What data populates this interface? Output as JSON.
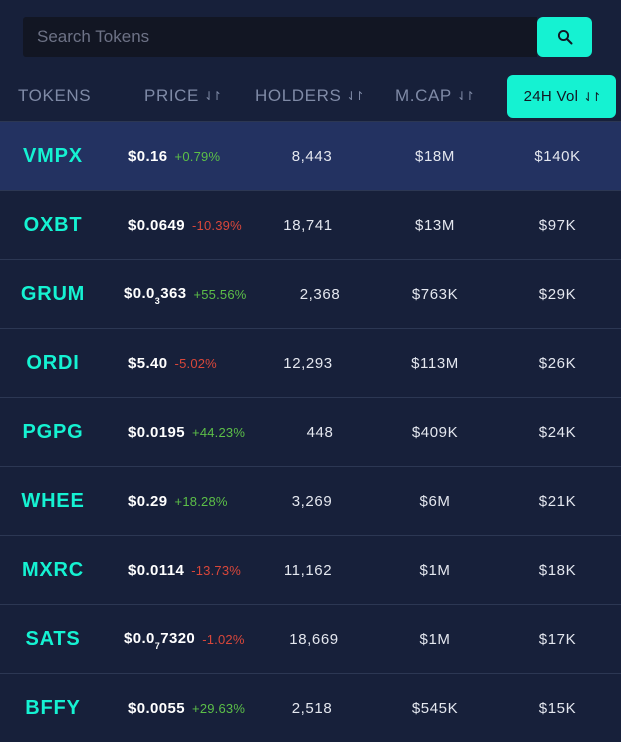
{
  "search": {
    "placeholder": "Search Tokens",
    "icon": "search-icon"
  },
  "header": {
    "tokens": "TOKENS",
    "price": "PRICE",
    "holders": "HOLDERS",
    "mcap": "M.CAP",
    "vol": "24H Vol",
    "sort_icon": "⇃↾",
    "active_sort": "24H Vol"
  },
  "colors": {
    "accent": "#15f2d2",
    "background": "#17203a",
    "highlight_row": "#233261",
    "positive": "#5cbf48",
    "negative": "#d9473a"
  },
  "tokens": [
    {
      "symbol": "VMPX",
      "price_main": "$0.16",
      "price_sub": "",
      "price_tail": "",
      "change": "+0.79%",
      "holders": "8,443",
      "mcap": "$18M",
      "vol": "$140K"
    },
    {
      "symbol": "OXBT",
      "price_main": "$0.0649",
      "price_sub": "",
      "price_tail": "",
      "change": "-10.39%",
      "holders": "18,741",
      "mcap": "$13M",
      "vol": "$97K"
    },
    {
      "symbol": "GRUM",
      "price_main": "$0.0",
      "price_sub": "3",
      "price_tail": "363",
      "change": "+55.56%",
      "holders": "2,368",
      "mcap": "$763K",
      "vol": "$29K"
    },
    {
      "symbol": "ORDI",
      "price_main": "$5.40",
      "price_sub": "",
      "price_tail": "",
      "change": "-5.02%",
      "holders": "12,293",
      "mcap": "$113M",
      "vol": "$26K"
    },
    {
      "symbol": "PGPG",
      "price_main": "$0.0195",
      "price_sub": "",
      "price_tail": "",
      "change": "+44.23%",
      "holders": "448",
      "mcap": "$409K",
      "vol": "$24K"
    },
    {
      "symbol": "WHEE",
      "price_main": "$0.29",
      "price_sub": "",
      "price_tail": "",
      "change": "+18.28%",
      "holders": "3,269",
      "mcap": "$6M",
      "vol": "$21K"
    },
    {
      "symbol": "MXRC",
      "price_main": "$0.0114",
      "price_sub": "",
      "price_tail": "",
      "change": "-13.73%",
      "holders": "11,162",
      "mcap": "$1M",
      "vol": "$18K"
    },
    {
      "symbol": "SATS",
      "price_main": "$0.0",
      "price_sub": "7",
      "price_tail": "7320",
      "change": "-1.02%",
      "holders": "18,669",
      "mcap": "$1M",
      "vol": "$17K"
    },
    {
      "symbol": "BFFY",
      "price_main": "$0.0055",
      "price_sub": "",
      "price_tail": "",
      "change": "+29.63%",
      "holders": "2,518",
      "mcap": "$545K",
      "vol": "$15K"
    }
  ]
}
